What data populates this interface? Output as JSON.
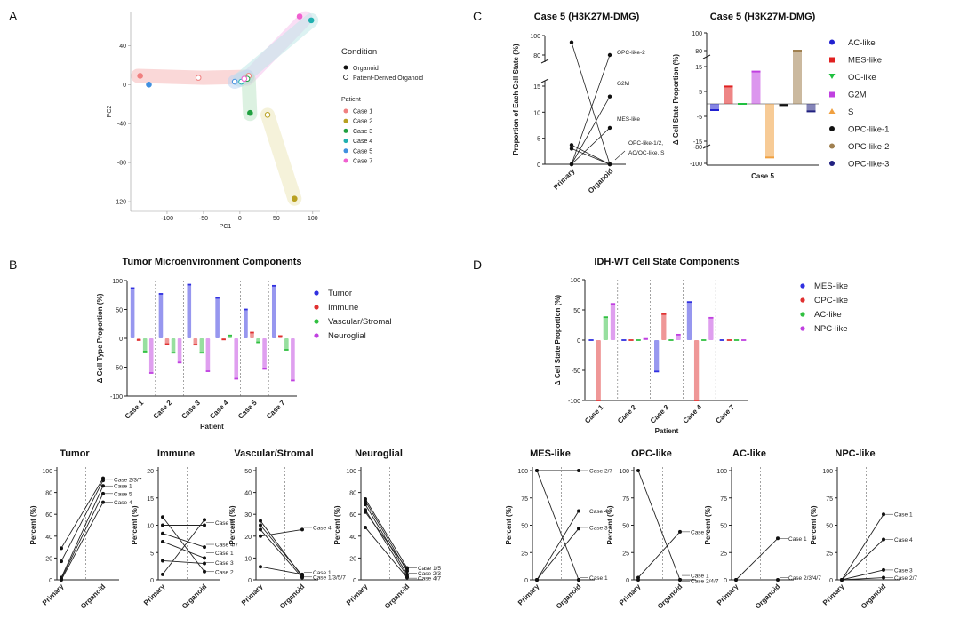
{
  "panel_letters": [
    "A",
    "B",
    "C",
    "D"
  ],
  "chart_data": [
    {
      "id": "pca",
      "type": "scatter",
      "title": "",
      "xlabel": "PC1",
      "ylabel": "PC2",
      "xlim": [
        -150,
        110
      ],
      "ylim": [
        -130,
        75
      ],
      "xticks": [
        -100,
        -50,
        0,
        50,
        100
      ],
      "yticks": [
        40,
        0,
        -40,
        -80,
        -120
      ],
      "legend": {
        "condition_title": "Condition",
        "condition": [
          "Organoid",
          "Patient-Derived Organoid"
        ],
        "patient_title": "Patient",
        "patients": [
          {
            "name": "Case 1",
            "color": "#f08080"
          },
          {
            "name": "Case 2",
            "color": "#b8a020"
          },
          {
            "name": "Case 3",
            "color": "#20a040"
          },
          {
            "name": "Case 4",
            "color": "#20b0b0"
          },
          {
            "name": "Case 5",
            "color": "#4090e0"
          },
          {
            "name": "Case 7",
            "color": "#f060d0"
          }
        ]
      },
      "points": [
        {
          "x": -137,
          "y": 9,
          "patient": 0,
          "filled": true
        },
        {
          "x": -57,
          "y": 7,
          "patient": 0,
          "filled": false
        },
        {
          "x": 12,
          "y": 9,
          "patient": 0,
          "filled": false
        },
        {
          "x": 75,
          "y": -117,
          "patient": 1,
          "filled": true
        },
        {
          "x": 38,
          "y": -31,
          "patient": 1,
          "filled": false
        },
        {
          "x": 14,
          "y": -29,
          "patient": 2,
          "filled": true
        },
        {
          "x": 10,
          "y": 6,
          "patient": 2,
          "filled": false
        },
        {
          "x": 98,
          "y": 66,
          "patient": 3,
          "filled": true
        },
        {
          "x": 2,
          "y": 3,
          "patient": 3,
          "filled": false
        },
        {
          "x": -125,
          "y": 0,
          "patient": 4,
          "filled": true
        },
        {
          "x": -7,
          "y": 3,
          "patient": 4,
          "filled": false
        },
        {
          "x": 82,
          "y": 70,
          "patient": 5,
          "filled": true
        },
        {
          "x": 6,
          "y": 6,
          "patient": 5,
          "filled": false
        }
      ]
    },
    {
      "id": "c_left",
      "type": "line",
      "title": "Case 5 (H3K27M-DMG)",
      "ylabel": "Proportion of Each Cell State (%)",
      "categories": [
        "Primary",
        "Organoid"
      ],
      "yticks_low": [
        0,
        5,
        10,
        15
      ],
      "yticks_high": [
        80,
        100
      ],
      "series": [
        {
          "values": [
            93,
            0
          ]
        },
        {
          "values": [
            3.7,
            0
          ]
        },
        {
          "values": [
            3,
            0
          ]
        },
        {
          "values": [
            0,
            80
          ]
        },
        {
          "values": [
            0,
            13
          ]
        },
        {
          "values": [
            0,
            7
          ]
        },
        {
          "values": [
            0,
            0
          ]
        }
      ],
      "annotations": [
        "OPC-like-2",
        "G2M",
        "MES-like",
        "OPC-like-1/2,",
        "AC/OC-like, S"
      ]
    },
    {
      "id": "c_right",
      "type": "bar",
      "title": "Case 5 (H3K27M-DMG)",
      "ylabel": "Δ Cell State Proportion (%)",
      "xlabel": "Case 5",
      "yticks": [
        100,
        80,
        15,
        5,
        -5,
        -15,
        -80,
        -100
      ],
      "series": [
        {
          "name": "AC-like",
          "color": "#2020d0",
          "value": -2.5,
          "marker": "circle"
        },
        {
          "name": "MES-like",
          "color": "#e02020",
          "value": 7,
          "marker": "square"
        },
        {
          "name": "OC-like",
          "color": "#20c040",
          "value": 0,
          "marker": "triangle-down"
        },
        {
          "name": "G2M",
          "color": "#c040e0",
          "value": 13,
          "marker": "square"
        },
        {
          "name": "S",
          "color": "#f0a040",
          "value": -93,
          "marker": "triangle"
        },
        {
          "name": "OPC-like-1",
          "color": "#111111",
          "value": -0.5,
          "marker": "circle"
        },
        {
          "name": "OPC-like-2",
          "color": "#a08050",
          "value": 80,
          "marker": "circle"
        },
        {
          "name": "OPC-like-3",
          "color": "#202080",
          "value": -3,
          "marker": "circle"
        }
      ]
    },
    {
      "id": "tme_bar",
      "type": "bar",
      "title": "Tumor Microenvironment Components",
      "ylabel": "Δ Cell Type Proportion (%)",
      "xlabel": "Patient",
      "ylim": [
        -100,
        100
      ],
      "yticks": [
        100,
        50,
        0,
        -50,
        -100
      ],
      "categories": [
        "Case 1",
        "Case 2",
        "Case 3",
        "Case 4",
        "Case 5",
        "Case 7"
      ],
      "series": [
        {
          "name": "Tumor",
          "color": "#3030e0",
          "values": [
            87,
            77,
            93,
            70,
            50,
            91
          ]
        },
        {
          "name": "Immune",
          "color": "#e03030",
          "values": [
            -3,
            -10,
            -11,
            -2,
            10,
            4
          ]
        },
        {
          "name": "Vascular/Stromal",
          "color": "#30c040",
          "values": [
            -23,
            -25,
            -25,
            5,
            -7,
            -20
          ]
        },
        {
          "name": "Neuroglial",
          "color": "#c040e0",
          "values": [
            -60,
            -42,
            -57,
            -70,
            -53,
            -73
          ]
        }
      ]
    },
    {
      "id": "idh_bar",
      "type": "bar",
      "title": "IDH-WT Cell State Components",
      "ylabel": "Δ Cell State Proportion (%)",
      "xlabel": "Patient",
      "ylim": [
        -100,
        100
      ],
      "yticks": [
        100,
        50,
        0,
        -50,
        -100
      ],
      "categories": [
        "Case 1",
        "Case 2",
        "Case 3",
        "Case 4",
        "Case 7"
      ],
      "series": [
        {
          "name": "MES-like",
          "color": "#3030e0",
          "values": [
            0,
            0,
            -52,
            63,
            0
          ]
        },
        {
          "name": "OPC-like",
          "color": "#e03030",
          "values": [
            -100,
            0,
            43,
            -100,
            0
          ]
        },
        {
          "name": "AC-like",
          "color": "#30c040",
          "values": [
            38,
            0,
            0,
            0,
            0
          ]
        },
        {
          "name": "NPC-like",
          "color": "#c040e0",
          "values": [
            60,
            2,
            9,
            37,
            0
          ]
        }
      ]
    },
    {
      "id": "b_tumor",
      "type": "line",
      "title": "Tumor",
      "ylabel": "Percent (%)",
      "categories": [
        "Primary",
        "Organoid"
      ],
      "ylim": [
        0,
        100
      ],
      "yticks": [
        0,
        20,
        40,
        60,
        80,
        100
      ],
      "series": [
        [
          29,
          93
        ],
        [
          17,
          91
        ],
        [
          2,
          86
        ],
        [
          1,
          79
        ],
        [
          0,
          71
        ]
      ],
      "labels": [
        {
          "text": "Case 2/3/7",
          "y": 92
        },
        {
          "text": "Case 1",
          "y": 86
        },
        {
          "text": "Case 5",
          "y": 79
        },
        {
          "text": "Case 4",
          "y": 71
        }
      ]
    },
    {
      "id": "b_immune",
      "type": "line",
      "title": "Immune",
      "ylabel": "Percent (%)",
      "categories": [
        "Primary",
        "Organoid"
      ],
      "ylim": [
        0,
        20
      ],
      "yticks": [
        0,
        5,
        10,
        15,
        20
      ],
      "series": [
        [
          11.5,
          1.5
        ],
        [
          10,
          10
        ],
        [
          8.5,
          6
        ],
        [
          7,
          4
        ],
        [
          3.5,
          3
        ],
        [
          1,
          11
        ]
      ],
      "labels": [
        {
          "text": "Case 5",
          "y": 10.5
        },
        {
          "text": "Case 4/7",
          "y": 6.5
        },
        {
          "text": "Case 1",
          "y": 5
        },
        {
          "text": "Case 3",
          "y": 3.2
        },
        {
          "text": "Case 2",
          "y": 1.5
        }
      ]
    },
    {
      "id": "b_vascular",
      "type": "line",
      "title": "Vascular/Stromal",
      "ylabel": "Percent (%)",
      "categories": [
        "Primary",
        "Organoid"
      ],
      "ylim": [
        0,
        50
      ],
      "yticks": [
        0,
        10,
        20,
        30,
        40,
        50
      ],
      "series": [
        [
          27,
          1.5
        ],
        [
          25,
          2
        ],
        [
          23,
          1
        ],
        [
          20,
          23
        ],
        [
          6,
          2.5
        ]
      ],
      "labels": [
        {
          "text": "Case 4",
          "y": 24
        },
        {
          "text": "Case 1",
          "y": 3.5
        },
        {
          "text": "Case 1/3/5/7",
          "y": 1.3
        }
      ]
    },
    {
      "id": "b_neuro",
      "type": "line",
      "title": "Neuroglial",
      "ylabel": "Percent (%)",
      "categories": [
        "Primary",
        "Organoid"
      ],
      "ylim": [
        0,
        100
      ],
      "yticks": [
        0,
        20,
        40,
        60,
        80,
        100
      ],
      "series": [
        [
          74,
          11
        ],
        [
          72,
          8
        ],
        [
          69,
          5
        ],
        [
          64,
          3
        ],
        [
          62,
          10
        ],
        [
          48,
          2
        ]
      ],
      "labels": [
        {
          "text": "Case 1/5",
          "y": 11
        },
        {
          "text": "Case 2/3",
          "y": 6
        },
        {
          "text": "Case 4/7",
          "y": 1.5
        }
      ]
    },
    {
      "id": "d_mes",
      "type": "line",
      "title": "MES-like",
      "ylabel": "Percent (%)",
      "categories": [
        "Primary",
        "Organoid"
      ],
      "ylim": [
        0,
        100
      ],
      "yticks": [
        0,
        25,
        50,
        75,
        100
      ],
      "series": [
        [
          100,
          100
        ],
        [
          100,
          0
        ],
        [
          0,
          63
        ],
        [
          0,
          47
        ],
        [
          0,
          0
        ]
      ],
      "labels": [
        {
          "text": "Case 2/7",
          "y": 100
        },
        {
          "text": "Case 4",
          "y": 63
        },
        {
          "text": "Case 3",
          "y": 48
        },
        {
          "text": "Case 1",
          "y": 2
        }
      ]
    },
    {
      "id": "d_opc",
      "type": "line",
      "title": "OPC-like",
      "ylabel": "Percent (%)",
      "categories": [
        "Primary",
        "Organoid"
      ],
      "ylim": [
        0,
        100
      ],
      "yticks": [
        0,
        25,
        50,
        75,
        100
      ],
      "series": [
        [
          100,
          0
        ],
        [
          2,
          44
        ],
        [
          0,
          0
        ]
      ],
      "labels": [
        {
          "text": "Case 3",
          "y": 44
        },
        {
          "text": "Case 1",
          "y": 4
        },
        {
          "text": "Case 2/4/7",
          "y": -1
        }
      ]
    },
    {
      "id": "d_ac",
      "type": "line",
      "title": "AC-like",
      "ylabel": "Percent (%)",
      "categories": [
        "Primary",
        "Organoid"
      ],
      "ylim": [
        0,
        100
      ],
      "yticks": [
        0,
        25,
        50,
        75,
        100
      ],
      "series": [
        [
          0,
          38
        ],
        [
          0,
          0
        ]
      ],
      "labels": [
        {
          "text": "Case 1",
          "y": 38
        },
        {
          "text": "Case 2/3/4/7",
          "y": 2
        }
      ]
    },
    {
      "id": "d_npc",
      "type": "line",
      "title": "NPC-like",
      "ylabel": "Percent (%)",
      "categories": [
        "Primary",
        "Organoid"
      ],
      "ylim": [
        0,
        100
      ],
      "yticks": [
        0,
        25,
        50,
        75,
        100
      ],
      "series": [
        [
          0,
          60
        ],
        [
          0,
          37
        ],
        [
          0,
          9
        ],
        [
          0,
          2
        ]
      ],
      "labels": [
        {
          "text": "Case 1",
          "y": 60
        },
        {
          "text": "Case 4",
          "y": 37
        },
        {
          "text": "Case 3",
          "y": 9
        },
        {
          "text": "Case 2/7",
          "y": 2
        }
      ]
    }
  ]
}
